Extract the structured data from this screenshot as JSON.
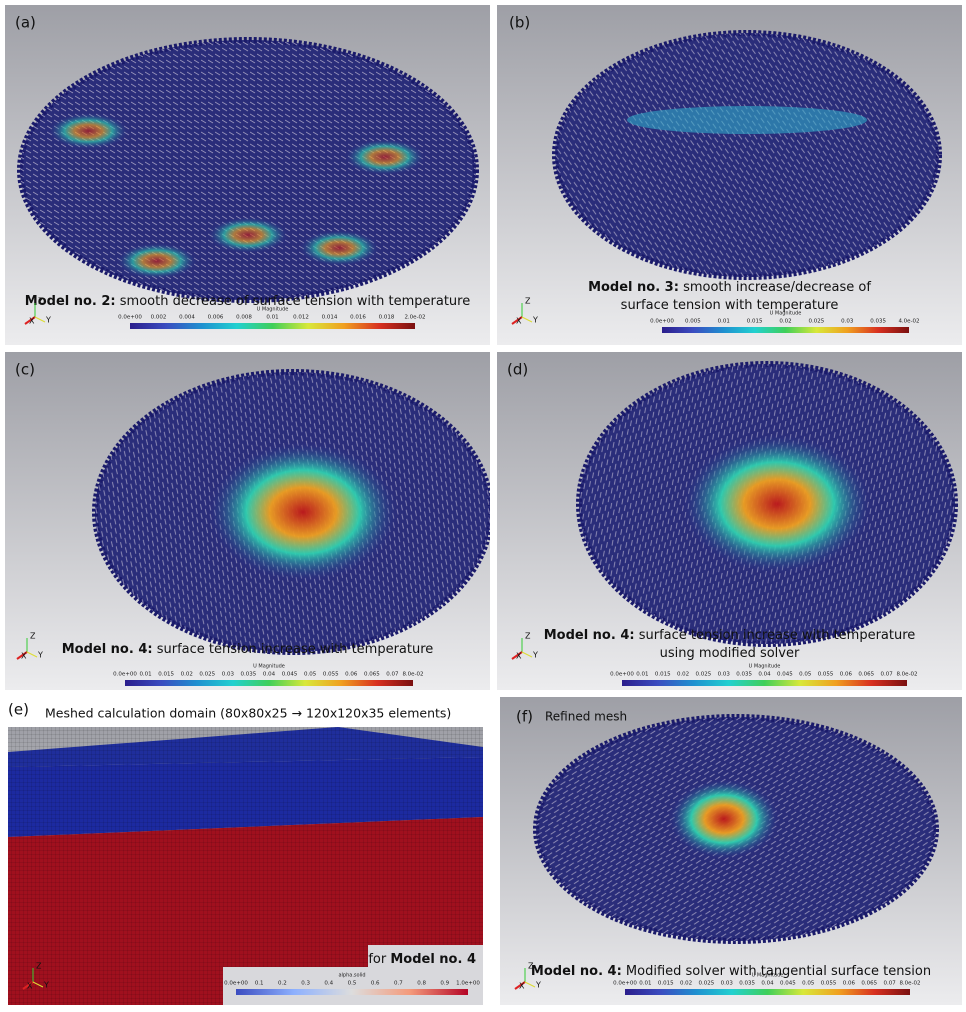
{
  "triad": [
    "Z",
    "X",
    "Y"
  ],
  "panels": [
    {
      "label": "(a)",
      "caption": [
        {
          "bold": "Model no. 2:",
          "text": " smooth decrease of surface tension with temperature"
        }
      ],
      "colorbar": {
        "title": "U Magnitude",
        "ticks": [
          "0.0e+00",
          "0.002",
          "0.004",
          "0.006",
          "0.008",
          "0.01",
          "0.012",
          "0.014",
          "0.016",
          "0.018",
          "2.0e-02"
        ]
      }
    },
    {
      "label": "(b)",
      "caption": [
        {
          "bold": "Model no. 3:",
          "text": " smooth increase/decrease of"
        },
        {
          "text": "surface tension with temperature"
        }
      ],
      "colorbar": {
        "title": "U Magnitude",
        "ticks": [
          "0.0e+00",
          "0.005",
          "0.01",
          "0.015",
          "0.02",
          "0.025",
          "0.03",
          "0.035",
          "4.0e-02"
        ]
      }
    },
    {
      "label": "(c)",
      "caption": [
        {
          "bold": "Model no. 4:",
          "text": " surface tension increase with temperature"
        }
      ],
      "colorbar": {
        "title": "U Magnitude",
        "ticks": [
          "0.0e+00",
          "0.01",
          "0.015",
          "0.02",
          "0.025",
          "0.03",
          "0.035",
          "0.04",
          "0.045",
          "0.05",
          "0.055",
          "0.06",
          "0.065",
          "0.07",
          "8.0e-02"
        ]
      }
    },
    {
      "label": "(d)",
      "caption": [
        {
          "bold": "Model no. 4:",
          "text": " surface tension increase with temperature"
        },
        {
          "text": "using modified solver"
        }
      ],
      "colorbar": {
        "title": "U Magnitude",
        "ticks": [
          "0.0e+00",
          "0.01",
          "0.015",
          "0.02",
          "0.025",
          "0.03",
          "0.035",
          "0.04",
          "0.045",
          "0.05",
          "0.055",
          "0.06",
          "0.065",
          "0.07",
          "8.0e-02"
        ]
      }
    },
    {
      "label": "(e)",
      "heading": "Meshed calculation domain (80x80x25 → 120x120x35 elements)",
      "caption": [
        {
          "text": "for ",
          "bold": "Model no. 4"
        }
      ],
      "colorbar": {
        "title": "alpha.solid",
        "ticks": [
          "0.0e+00",
          "0.1",
          "0.2",
          "0.3",
          "0.4",
          "0.5",
          "0.6",
          "0.7",
          "0.8",
          "0.9",
          "1.0e+00"
        ]
      }
    },
    {
      "label": "(f)",
      "heading": "Refined mesh",
      "caption": [
        {
          "bold": "Model no. 4:",
          "text": " Modified solver with tangential surface tension"
        }
      ],
      "colorbar": {
        "title": "U Magnitude",
        "ticks": [
          "0.0e+00",
          "0.01",
          "0.015",
          "0.02",
          "0.025",
          "0.03",
          "0.035",
          "0.04",
          "0.045",
          "0.05",
          "0.055",
          "0.06",
          "0.065",
          "0.07",
          "8.0e-02"
        ]
      }
    }
  ]
}
